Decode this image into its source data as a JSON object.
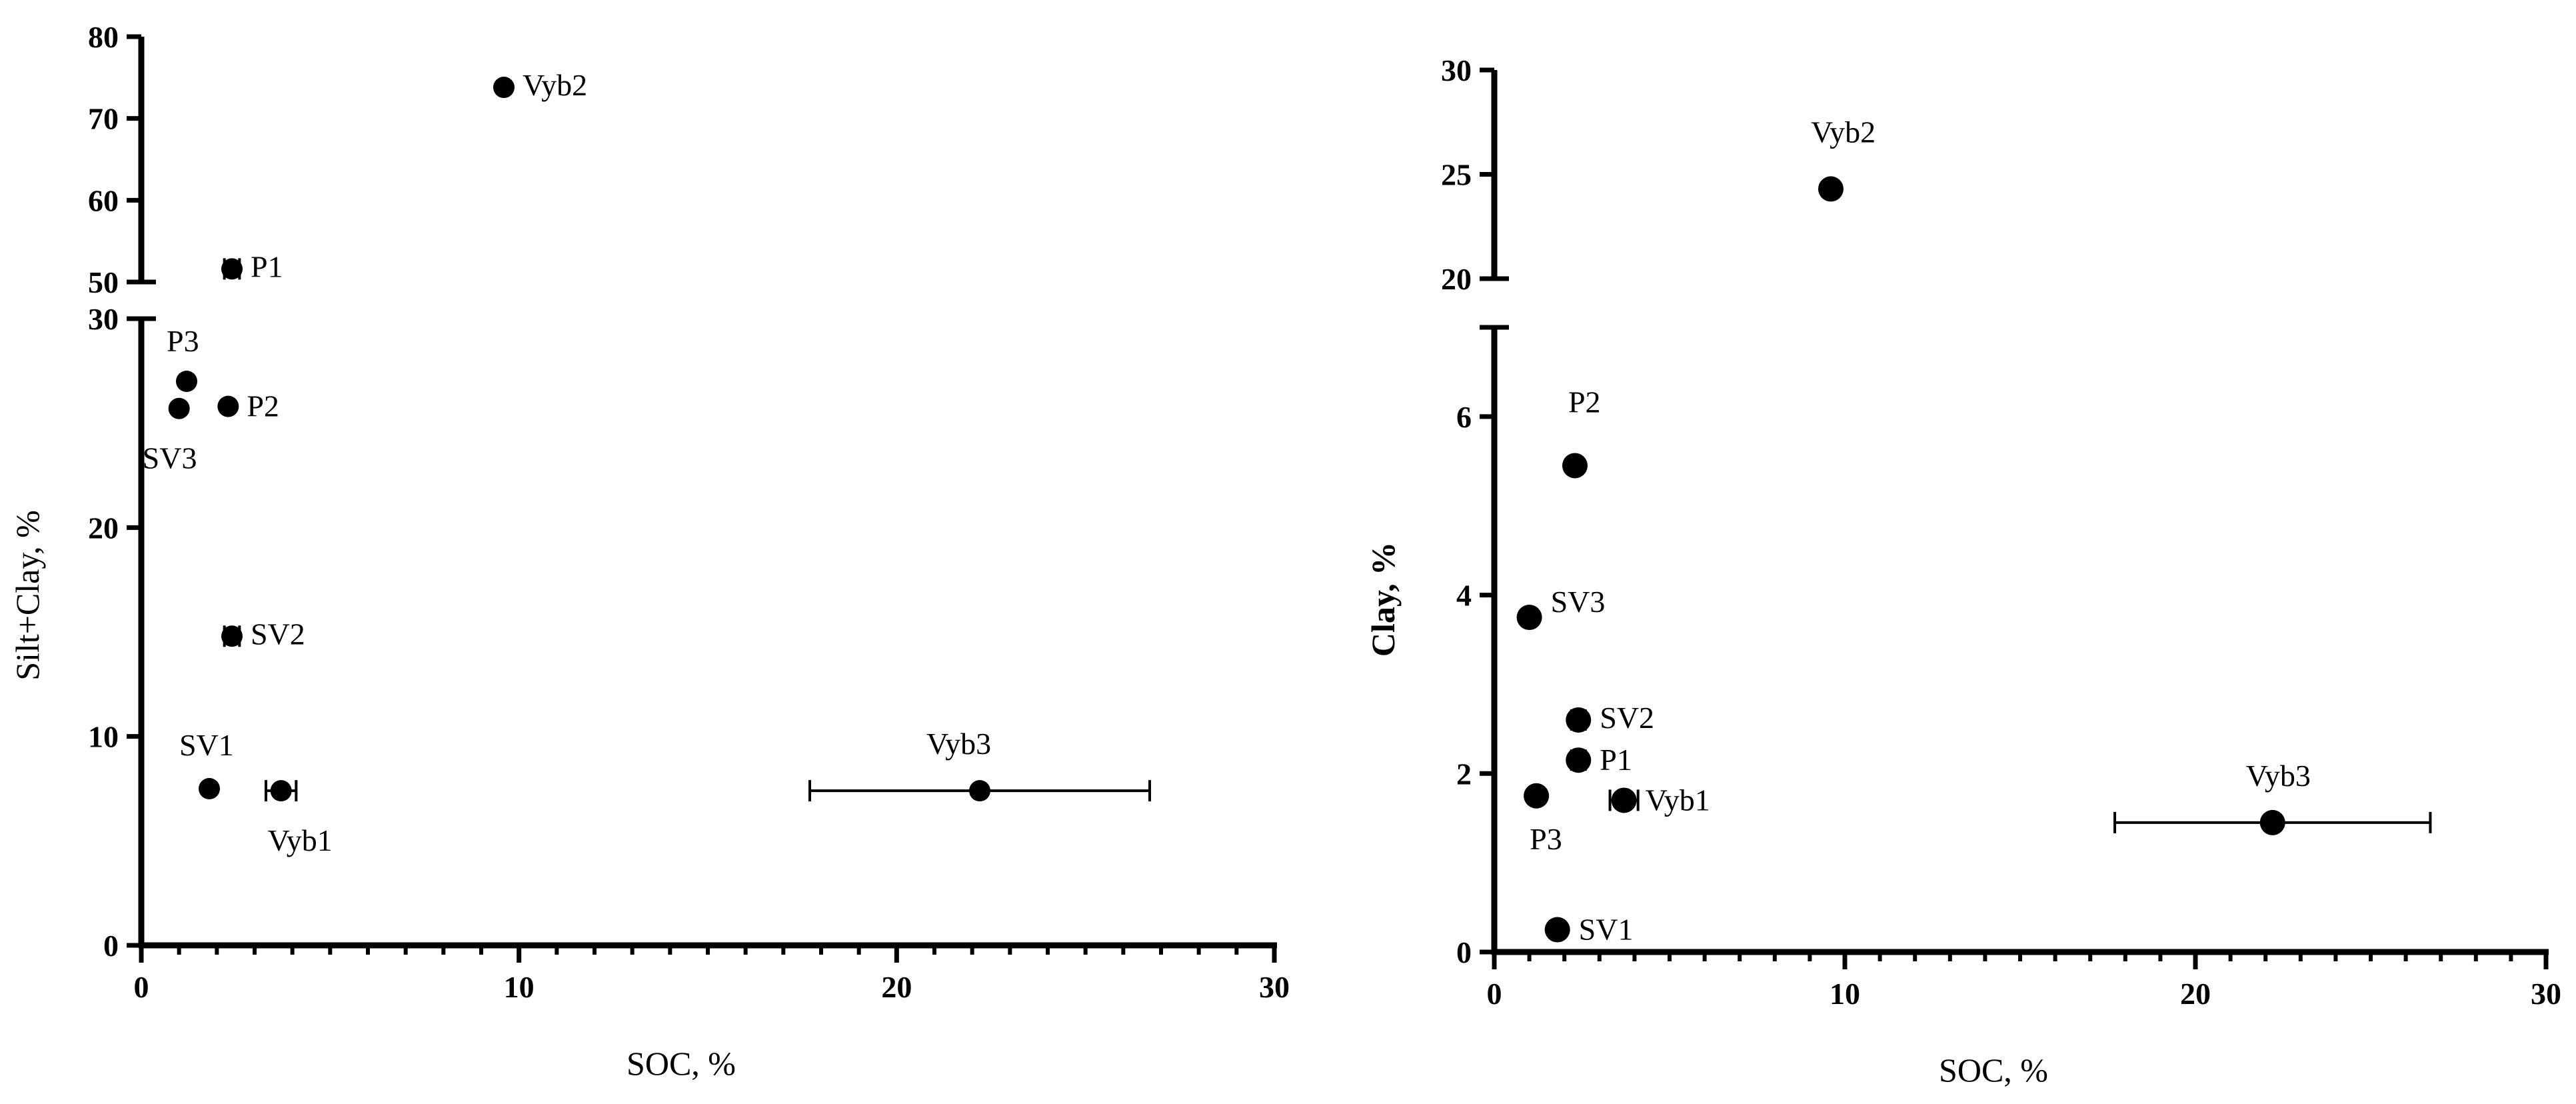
{
  "chart_data": [
    {
      "type": "scatter",
      "title": "",
      "xlabel": "SOC, %",
      "ylabel": "Silt+Clay, %",
      "xlim": [
        0,
        30
      ],
      "xticks": [
        0,
        10,
        20,
        30
      ],
      "y_segments": [
        {
          "range": [
            0,
            30
          ],
          "ticks": [
            0,
            10,
            20,
            30
          ]
        },
        {
          "range": [
            50,
            80
          ],
          "ticks": [
            50,
            60,
            70,
            80
          ]
        }
      ],
      "points": [
        {
          "label": "Vyb2",
          "x": 9.6,
          "y": 73.8,
          "xerr": 0
        },
        {
          "label": "P1",
          "x": 2.4,
          "y": 51.6,
          "xerr": 0.2
        },
        {
          "label": "P3",
          "x": 1.2,
          "y": 27.0,
          "xerr": 0
        },
        {
          "label": "P2",
          "x": 2.3,
          "y": 25.8,
          "xerr": 0
        },
        {
          "label": "SV3",
          "x": 1.0,
          "y": 25.7,
          "xerr": 0
        },
        {
          "label": "SV2",
          "x": 2.4,
          "y": 14.8,
          "xerr": 0.2
        },
        {
          "label": "SV1",
          "x": 1.8,
          "y": 7.5,
          "xerr": 0
        },
        {
          "label": "Vyb1",
          "x": 3.7,
          "y": 7.4,
          "xerr": 0.4
        },
        {
          "label": "Vyb3",
          "x": 22.2,
          "y": 7.4,
          "xerr": 4.5
        }
      ]
    },
    {
      "type": "scatter",
      "title": "",
      "xlabel": "SOC, %",
      "ylabel": "Clay, %",
      "xlim": [
        0,
        30
      ],
      "xticks": [
        0,
        10,
        20,
        30
      ],
      "y_segments": [
        {
          "range": [
            0,
            7
          ],
          "ticks": [
            0,
            2,
            4,
            6
          ]
        },
        {
          "range": [
            20,
            30
          ],
          "ticks": [
            20,
            25,
            30
          ]
        }
      ],
      "points": [
        {
          "label": "Vyb2",
          "x": 9.6,
          "y": 24.3,
          "xerr": 0
        },
        {
          "label": "P2",
          "x": 2.3,
          "y": 5.45,
          "xerr": 0
        },
        {
          "label": "SV3",
          "x": 1.0,
          "y": 3.75,
          "xerr": 0
        },
        {
          "label": "SV2",
          "x": 2.4,
          "y": 2.6,
          "xerr": 0.2
        },
        {
          "label": "P1",
          "x": 2.4,
          "y": 2.15,
          "xerr": 0.2
        },
        {
          "label": "P3",
          "x": 1.2,
          "y": 1.75,
          "xerr": 0
        },
        {
          "label": "Vyb1",
          "x": 3.7,
          "y": 1.7,
          "xerr": 0.4
        },
        {
          "label": "Vyb3",
          "x": 22.2,
          "y": 1.45,
          "xerr": 4.5
        },
        {
          "label": "SV1",
          "x": 1.8,
          "y": 0.25,
          "xerr": 0
        }
      ]
    }
  ]
}
